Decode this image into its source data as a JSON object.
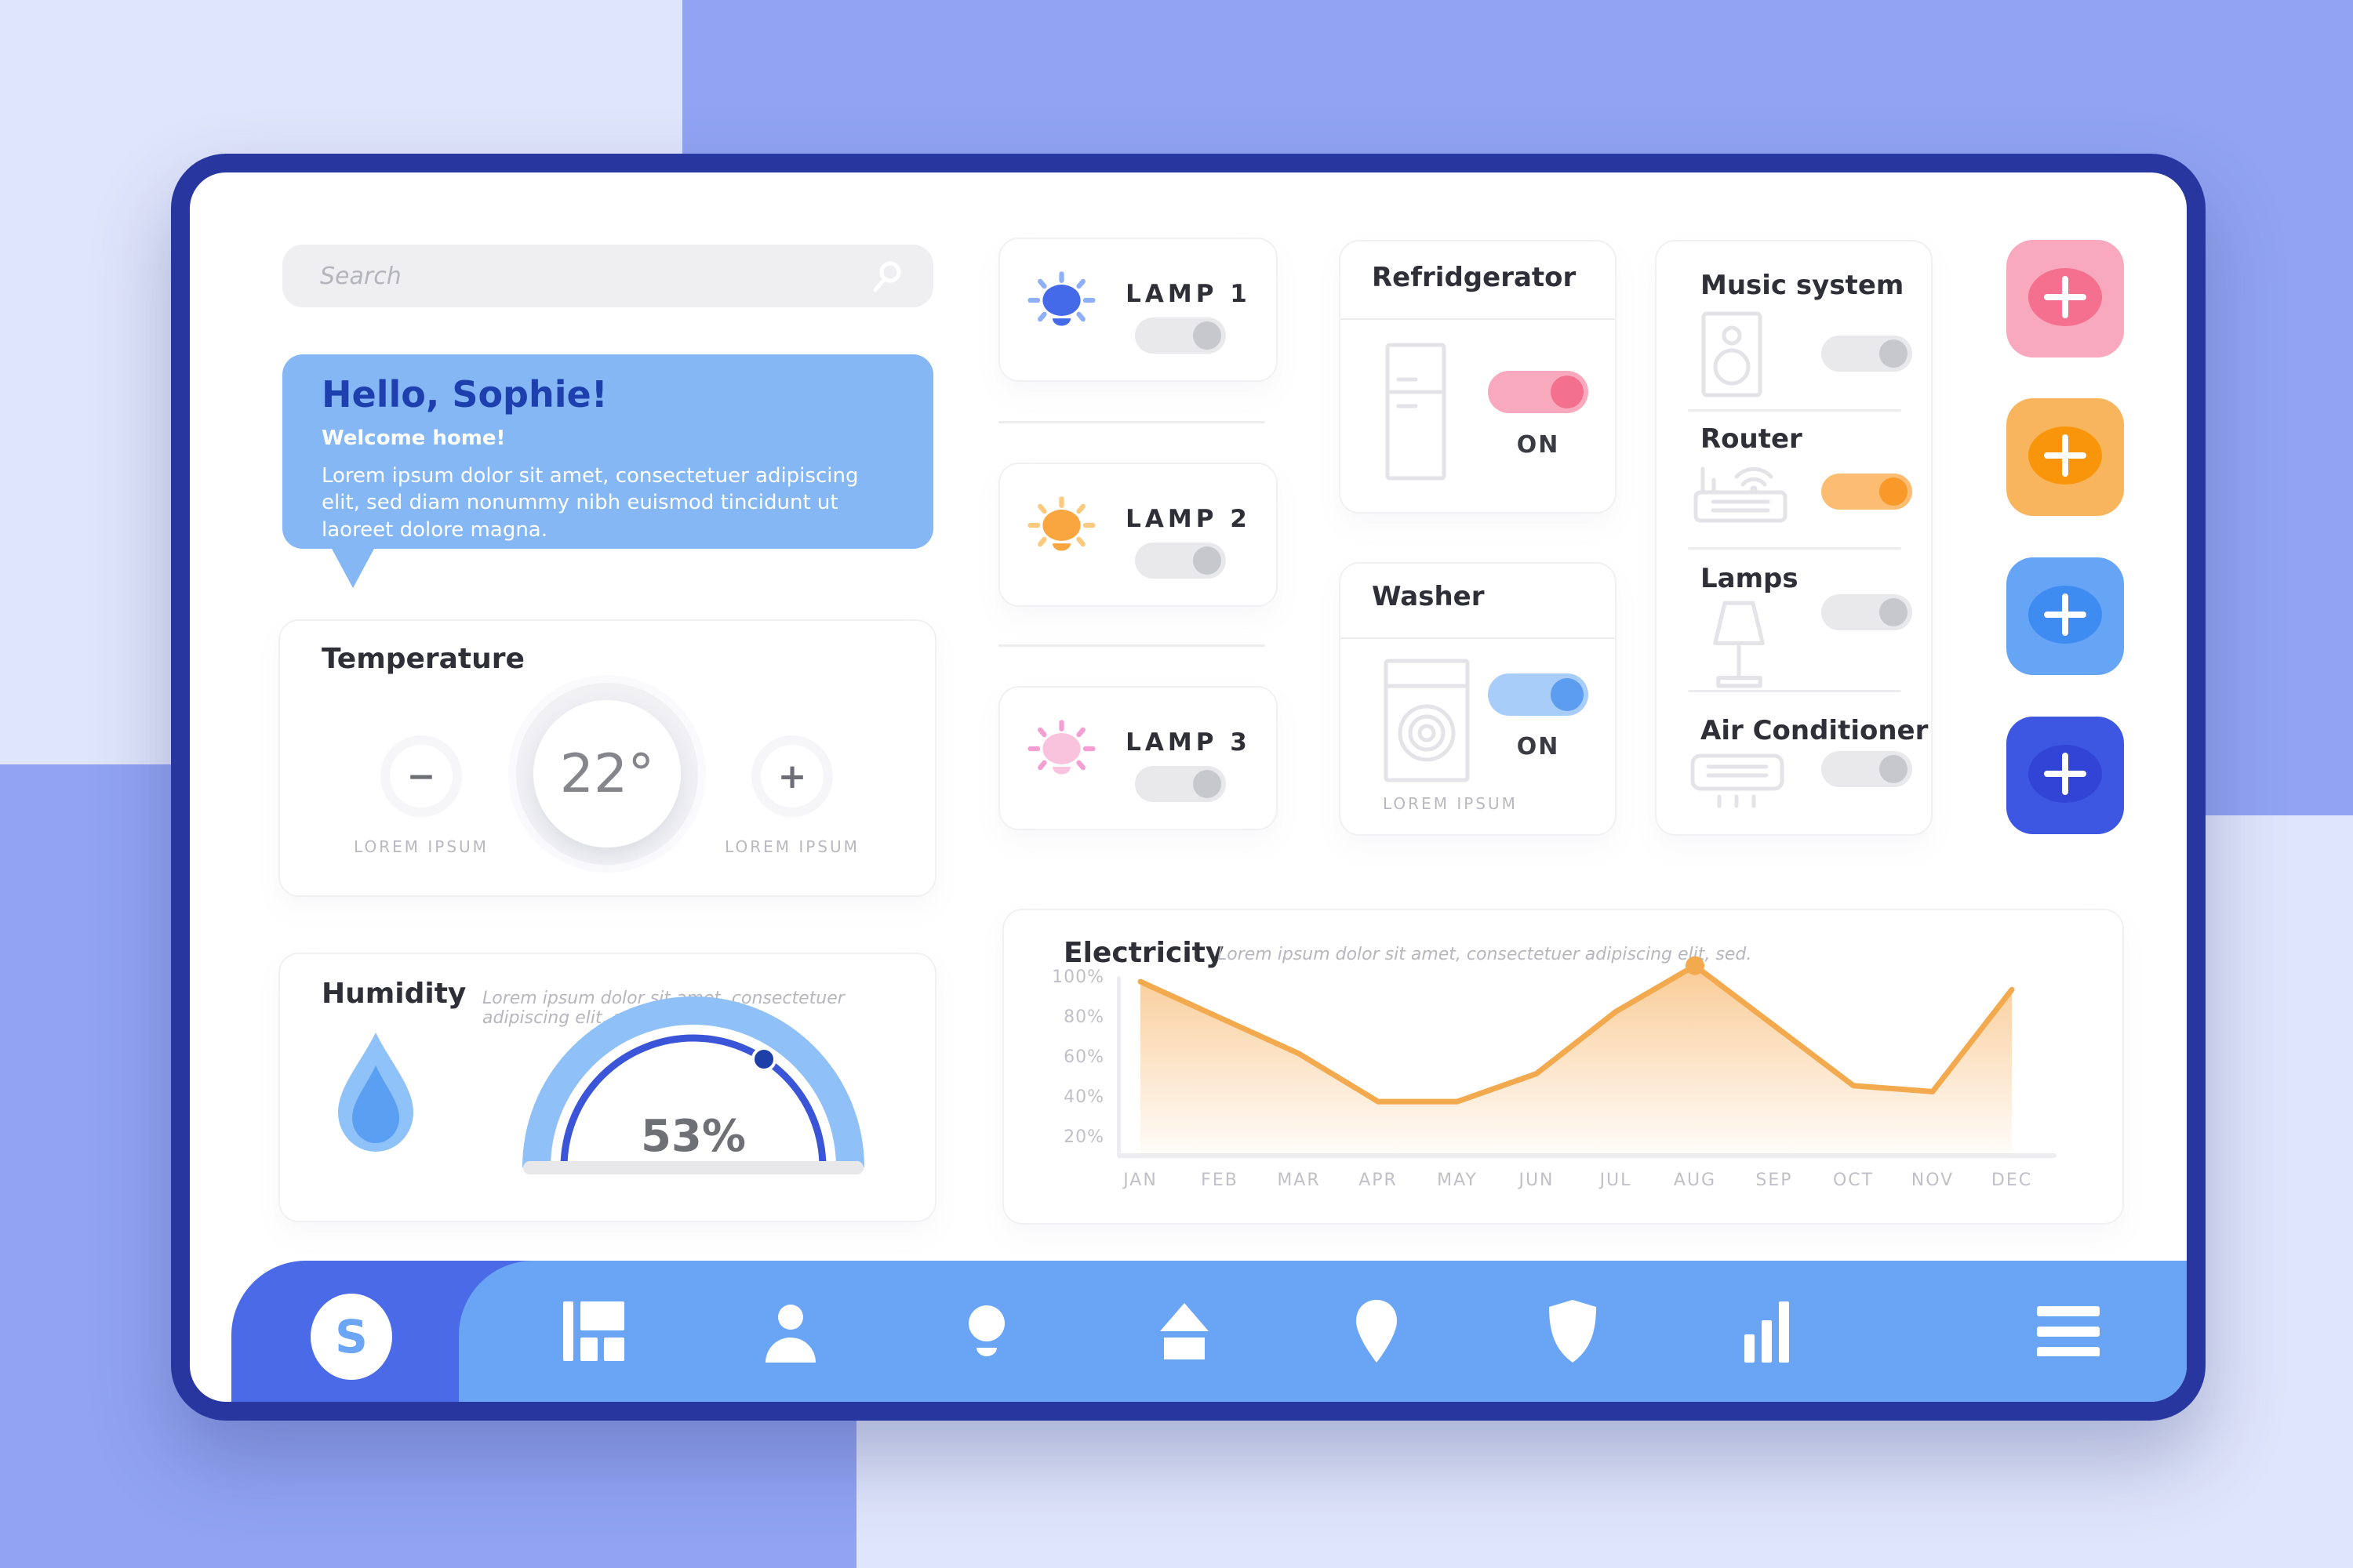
{
  "ui": {
    "bg_lavender": "#dfe5fb",
    "bg_periwinkle": "#91a3f2",
    "frame_color": "#2836a0",
    "nav_tab_color": "#4a6ae8",
    "nav_bar_color": "#69a4f5",
    "logo_letter": "S",
    "logo_letter_color": "#6ba5f5"
  },
  "search": {
    "placeholder": "Search"
  },
  "greeting": {
    "title": "Hello, Sophie!",
    "subtitle": "Welcome home!",
    "body": "Lorem ipsum dolor sit amet, consectetuer adipiscing elit, sed diam nonummy nibh euismod tincidunt ut laoreet dolore magna."
  },
  "temperature": {
    "title": "Temperature",
    "value": "22°",
    "minus_symbol": "−",
    "plus_symbol": "+",
    "decrease_caption": "LOREM IPSUM",
    "increase_caption": "LOREM IPSUM"
  },
  "humidity": {
    "title": "Humidity",
    "subtitle": "Lorem ipsum dolor sit amet, consectetuer adipiscing elit, sed.",
    "value": "53%",
    "gauge": {
      "percent": 53,
      "arc_color": "#8fc1f8",
      "track_color": "#3a55d8",
      "dot_color": "#1d3fa8"
    },
    "drop": {
      "outer": "#8ec2f8",
      "inner": "#5b9ff2"
    }
  },
  "lamps": [
    {
      "label": "LAMP 1",
      "state": "off",
      "bulb_color": "#4469e9",
      "ray_color": "#8fb0f8"
    },
    {
      "label": "LAMP 2",
      "state": "off",
      "bulb_color": "#f9a640",
      "ray_color": "#fbca7e"
    },
    {
      "label": "LAMP 3",
      "state": "off",
      "bulb_color": "#f9c3dd",
      "ray_color": "#f59ed2"
    }
  ],
  "toggle_gray": {
    "track": "#e9e9ec",
    "knob": "#c6c8cc"
  },
  "refrigerator": {
    "title": "Refridgerator",
    "status": "ON",
    "state": "on",
    "track": "#f8a9bd",
    "knob": "#f3718f"
  },
  "washer": {
    "title": "Washer",
    "status": "ON",
    "state": "on",
    "caption": "LOREM IPSUM",
    "track": "#a9cdf9",
    "knob": "#5d9df0"
  },
  "device_panel": {
    "items": [
      {
        "label": "Music system",
        "state": "off"
      },
      {
        "label": "Router",
        "state": "on",
        "track": "#fcbd72",
        "knob": "#f9992a"
      },
      {
        "label": "Lamps",
        "state": "off"
      },
      {
        "label": "Air Conditioner",
        "state": "off"
      }
    ]
  },
  "add_buttons": [
    {
      "name": "pink",
      "symbol": "+",
      "bg": "#f9a9bd",
      "inner": "#f5708f"
    },
    {
      "name": "orange",
      "symbol": "+",
      "bg": "#f9b55e",
      "inner": "#f8950a"
    },
    {
      "name": "light-blue",
      "symbol": "+",
      "bg": "#66a4f5",
      "inner": "#3e8bf2"
    },
    {
      "name": "dark-blue",
      "symbol": "+",
      "bg": "#3e57e2",
      "inner": "#3144d6"
    }
  ],
  "electricity": {
    "title": "Electricity",
    "subtitle": "Lorem ipsum dolor sit amet, consectetuer adipiscing elit, sed.",
    "chart_data": {
      "type": "area",
      "title": "Electricity",
      "categories": [
        "JAN",
        "FEB",
        "MAR",
        "APR",
        "MAY",
        "JUN",
        "JUL",
        "AUG",
        "SEP",
        "OCT",
        "NOV",
        "DEC"
      ],
      "values": [
        98,
        80,
        62,
        38,
        38,
        52,
        83,
        106,
        76,
        46,
        43,
        94
      ],
      "unit": "%",
      "ylim": [
        0,
        110
      ],
      "yticks": [
        {
          "value": 100,
          "label": "100%"
        },
        {
          "value": 80,
          "label": "80%"
        },
        {
          "value": 60,
          "label": "60%"
        },
        {
          "value": 40,
          "label": "40%"
        },
        {
          "value": 20,
          "label": "20%"
        }
      ],
      "grid": false,
      "legend": false,
      "line_color": "#f3a94d",
      "fill_top": "#f8c283",
      "marker": {
        "category": "AUG",
        "value": 106
      }
    }
  },
  "nav": {
    "items": [
      "dashboard",
      "user",
      "lamp",
      "home",
      "location",
      "security",
      "stats"
    ],
    "menu": "menu"
  }
}
